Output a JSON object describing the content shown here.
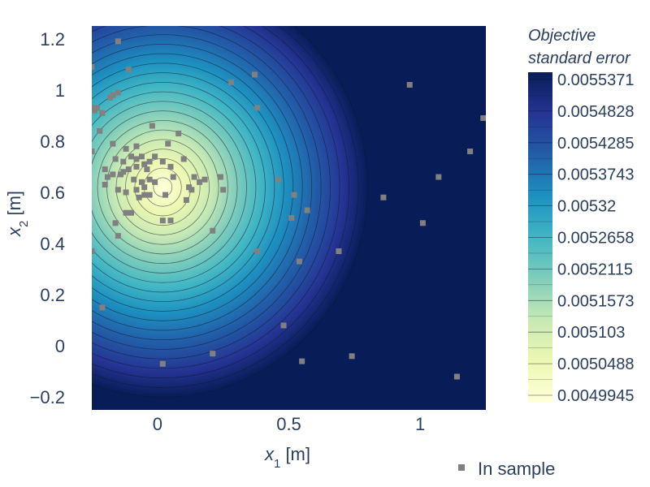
{
  "chart_data": {
    "type": "heatmap",
    "title": "",
    "xlabel": {
      "base": "x",
      "sub": "1",
      "unit": " [m]"
    },
    "ylabel": {
      "base": "x",
      "sub": "2",
      "unit": " [m]"
    },
    "xlim": [
      -0.25,
      1.25
    ],
    "ylim": [
      -0.25,
      1.25
    ],
    "x_ticks": [
      {
        "value": 0,
        "label": "0"
      },
      {
        "value": 0.5,
        "label": "0.5"
      },
      {
        "value": 1,
        "label": "1"
      }
    ],
    "y_ticks": [
      {
        "value": -0.2,
        "label": "−0.2"
      },
      {
        "value": 0,
        "label": "0"
      },
      {
        "value": 0.2,
        "label": "0.2"
      },
      {
        "value": 0.4,
        "label": "0.4"
      },
      {
        "value": 0.6,
        "label": "0.6"
      },
      {
        "value": 0.8,
        "label": "0.8"
      },
      {
        "value": 1,
        "label": "1"
      },
      {
        "value": 1.2,
        "label": "1.2"
      }
    ],
    "surface": {
      "center": [
        0.02,
        0.62
      ],
      "radius_x": 0.78,
      "radius_y": 0.82,
      "contour_levels": 22
    },
    "colorbar": {
      "title_lines": [
        "Objective",
        "standard error"
      ],
      "min": 0.0049945,
      "max": 0.0055371,
      "tick_labels": [
        "0.0055371",
        "0.0054828",
        "0.0054285",
        "0.0053743",
        "0.00532",
        "0.0052658",
        "0.0052115",
        "0.0051573",
        "0.005103",
        "0.0050488",
        "0.0049945"
      ],
      "colors": [
        "#ffffd9",
        "#edf8b1",
        "#c7e9b4",
        "#7fcdbb",
        "#41b6c4",
        "#1d91c0",
        "#225ea8",
        "#253494",
        "#081d58"
      ]
    },
    "legend": {
      "label": "In sample",
      "placement": "bottom-right",
      "marker_color": "#808080"
    },
    "series": [
      {
        "name": "In sample",
        "type": "scatter",
        "points": [
          [
            -0.15,
            1.19
          ],
          [
            -0.25,
            1.09
          ],
          [
            -0.11,
            1.08
          ],
          [
            -0.15,
            0.99
          ],
          [
            -0.17,
            0.98
          ],
          [
            -0.18,
            0.97
          ],
          [
            -0.25,
            0.93
          ],
          [
            -0.23,
            0.93
          ],
          [
            -0.24,
            0.92
          ],
          [
            -0.21,
            0.91
          ],
          [
            -0.22,
            0.84
          ],
          [
            -0.25,
            0.76
          ],
          [
            -0.17,
            0.79
          ],
          [
            -0.12,
            0.77
          ],
          [
            -0.08,
            0.78
          ],
          [
            -0.02,
            0.86
          ],
          [
            0.04,
            0.79
          ],
          [
            0.08,
            0.83
          ],
          [
            -0.16,
            0.73
          ],
          [
            -0.13,
            0.72
          ],
          [
            -0.1,
            0.74
          ],
          [
            -0.08,
            0.73
          ],
          [
            -0.06,
            0.74
          ],
          [
            -0.05,
            0.71
          ],
          [
            -0.03,
            0.72
          ],
          [
            -0.01,
            0.74
          ],
          [
            -0.04,
            0.69
          ],
          [
            -0.08,
            0.7
          ],
          [
            -0.11,
            0.69
          ],
          [
            -0.13,
            0.68
          ],
          [
            -0.2,
            0.69
          ],
          [
            -0.19,
            0.66
          ],
          [
            -0.2,
            0.63
          ],
          [
            -0.17,
            0.67
          ],
          [
            -0.14,
            0.67
          ],
          [
            -0.09,
            0.65
          ],
          [
            -0.06,
            0.64
          ],
          [
            -0.05,
            0.62
          ],
          [
            -0.03,
            0.65
          ],
          [
            -0.01,
            0.64
          ],
          [
            0.02,
            0.72
          ],
          [
            0.05,
            0.7
          ],
          [
            0.06,
            0.66
          ],
          [
            0.1,
            0.73
          ],
          [
            0.14,
            0.66
          ],
          [
            0.16,
            0.64
          ],
          [
            0.12,
            0.62
          ],
          [
            0.13,
            0.61
          ],
          [
            0.11,
            0.57
          ],
          [
            -0.15,
            0.61
          ],
          [
            -0.12,
            0.6
          ],
          [
            -0.08,
            0.61
          ],
          [
            -0.07,
            0.58
          ],
          [
            -0.05,
            0.59
          ],
          [
            -0.03,
            0.59
          ],
          [
            0.03,
            0.59
          ],
          [
            -0.12,
            0.52
          ],
          [
            -0.1,
            0.52
          ],
          [
            -0.16,
            0.48
          ],
          [
            -0.15,
            0.43
          ],
          [
            0.02,
            0.49
          ],
          [
            0.05,
            0.49
          ],
          [
            0.18,
            0.65
          ],
          [
            0.24,
            0.66
          ],
          [
            0.25,
            0.61
          ],
          [
            0.21,
            0.45
          ],
          [
            -0.25,
            0.37
          ],
          [
            -0.21,
            0.15
          ],
          [
            0.28,
            1.03
          ],
          [
            0.37,
            1.06
          ],
          [
            0.38,
            0.93
          ],
          [
            0.46,
            0.65
          ],
          [
            0.52,
            0.59
          ],
          [
            0.51,
            0.5
          ],
          [
            0.57,
            0.53
          ],
          [
            0.38,
            0.37
          ],
          [
            0.54,
            0.33
          ],
          [
            0.69,
            0.37
          ],
          [
            0.48,
            0.08
          ],
          [
            0.21,
            -0.03
          ],
          [
            0.02,
            -0.07
          ],
          [
            0.55,
            -0.06
          ],
          [
            0.74,
            -0.04
          ],
          [
            0.86,
            0.58
          ],
          [
            0.96,
            1.02
          ],
          [
            1.01,
            0.48
          ],
          [
            1.07,
            0.66
          ],
          [
            1.19,
            0.76
          ],
          [
            1.24,
            0.89
          ],
          [
            1.14,
            -0.12
          ]
        ]
      }
    ]
  }
}
